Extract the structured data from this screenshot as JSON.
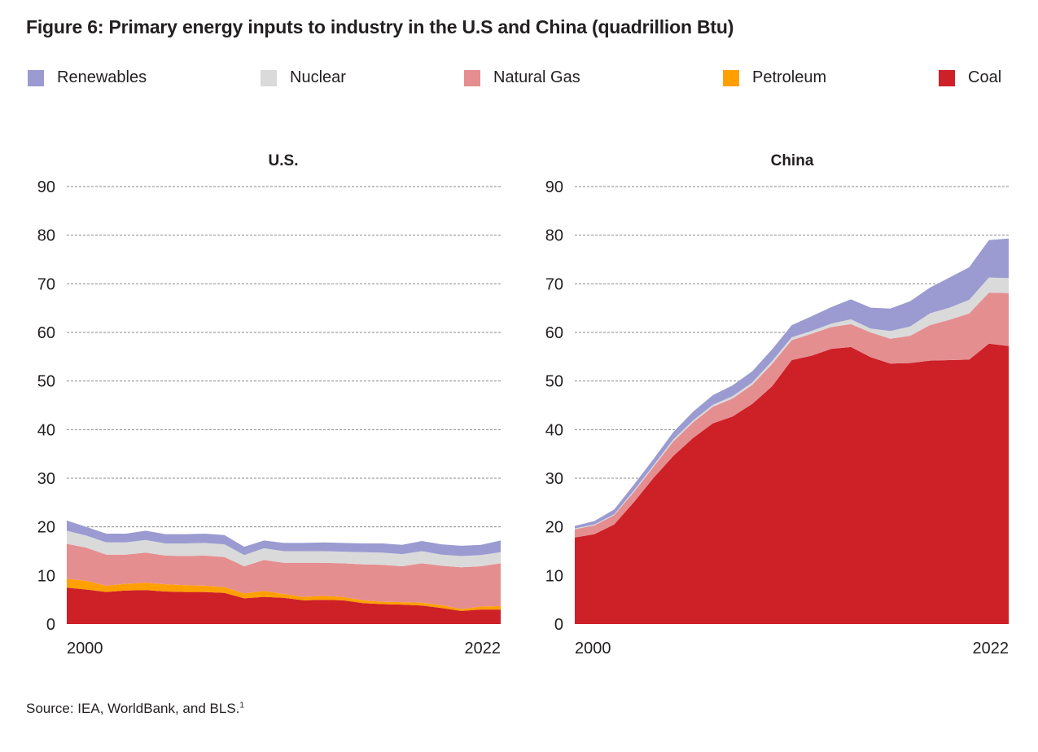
{
  "title": "Figure 6: Primary energy inputs to industry in the U.S and China (quadrillion Btu)",
  "source": {
    "text": "Source: IEA, WorldBank, and BLS.",
    "footnote": "1"
  },
  "legend": [
    {
      "name": "Renewables",
      "color": "#9b9bd1"
    },
    {
      "name": "Nuclear",
      "color": "#dadada"
    },
    {
      "name": "Natural Gas",
      "color": "#e58e90"
    },
    {
      "name": "Petroleum",
      "color": "#ffa000"
    },
    {
      "name": "Coal",
      "color": "#cd2027"
    }
  ],
  "chart_data": [
    {
      "type": "area",
      "stacked": true,
      "title": "U.S.",
      "xlabel": "",
      "ylabel": "quadrillion Btu",
      "x": [
        2000,
        2001,
        2002,
        2003,
        2004,
        2005,
        2006,
        2007,
        2008,
        2009,
        2010,
        2011,
        2012,
        2013,
        2014,
        2015,
        2016,
        2017,
        2018,
        2019,
        2020,
        2021,
        2022
      ],
      "x_tick_labels": [
        "2000",
        "2022"
      ],
      "y_ticks": [
        0,
        10,
        20,
        30,
        40,
        50,
        60,
        70,
        80,
        90
      ],
      "ylim": [
        0,
        90
      ],
      "grid": "horizontal dotted",
      "series": [
        {
          "name": "Coal",
          "color": "#cd2027",
          "values": [
            7.5,
            7.1,
            6.6,
            6.9,
            7.0,
            6.7,
            6.6,
            6.6,
            6.4,
            5.3,
            5.6,
            5.4,
            4.9,
            5.0,
            4.9,
            4.3,
            4.1,
            4.0,
            3.8,
            3.3,
            2.7,
            3.0,
            3.0
          ]
        },
        {
          "name": "Petroleum",
          "color": "#ffa000",
          "values": [
            1.8,
            1.8,
            1.3,
            1.4,
            1.5,
            1.5,
            1.4,
            1.3,
            1.2,
            1.0,
            1.2,
            0.8,
            0.7,
            0.8,
            0.7,
            0.6,
            0.5,
            0.5,
            0.6,
            0.6,
            0.4,
            0.6,
            0.7
          ]
        },
        {
          "name": "Natural Gas",
          "color": "#e58e90",
          "values": [
            7.2,
            6.8,
            6.4,
            6.0,
            6.2,
            5.9,
            6.0,
            6.2,
            6.2,
            5.6,
            6.4,
            6.4,
            7.0,
            6.8,
            6.9,
            7.4,
            7.6,
            7.4,
            8.1,
            8.1,
            8.6,
            8.3,
            8.8
          ]
        },
        {
          "name": "Nuclear",
          "color": "#dadada",
          "values": [
            2.7,
            2.5,
            2.5,
            2.5,
            2.6,
            2.5,
            2.6,
            2.6,
            2.6,
            2.3,
            2.4,
            2.4,
            2.4,
            2.4,
            2.4,
            2.5,
            2.5,
            2.5,
            2.5,
            2.3,
            2.3,
            2.3,
            2.3
          ]
        },
        {
          "name": "Renewables",
          "color": "#9b9bd1",
          "values": [
            2.1,
            1.8,
            1.8,
            1.8,
            1.9,
            1.9,
            1.9,
            1.9,
            1.9,
            1.7,
            1.6,
            1.7,
            1.7,
            1.8,
            1.8,
            1.8,
            1.9,
            1.9,
            2.1,
            2.1,
            2.1,
            2.1,
            2.4
          ]
        }
      ]
    },
    {
      "type": "area",
      "stacked": true,
      "title": "China",
      "xlabel": "",
      "ylabel": "quadrillion Btu",
      "x": [
        2000,
        2001,
        2002,
        2003,
        2004,
        2005,
        2006,
        2007,
        2008,
        2009,
        2010,
        2011,
        2012,
        2013,
        2014,
        2015,
        2016,
        2017,
        2018,
        2019,
        2020,
        2021,
        2022
      ],
      "x_tick_labels": [
        "2000",
        "2022"
      ],
      "y_ticks": [
        0,
        10,
        20,
        30,
        40,
        50,
        60,
        70,
        80,
        90
      ],
      "ylim": [
        0,
        90
      ],
      "grid": "horizontal dotted",
      "series": [
        {
          "name": "Coal",
          "color": "#cd2027",
          "values": [
            17.8,
            18.5,
            20.5,
            25.1,
            30.1,
            34.6,
            38.3,
            41.3,
            42.7,
            45.3,
            48.9,
            54.3,
            55.2,
            56.6,
            57.0,
            54.9,
            53.6,
            53.7,
            54.2,
            54.3,
            54.4,
            57.7,
            57.2
          ]
        },
        {
          "name": "Petroleum",
          "color": "#ffa000",
          "values": [
            0,
            0,
            0,
            0,
            0,
            0,
            0,
            0,
            0,
            0,
            0,
            0,
            0,
            0,
            0,
            0,
            0,
            0,
            0,
            0,
            0,
            0,
            0
          ]
        },
        {
          "name": "Natural Gas",
          "color": "#e58e90",
          "values": [
            1.7,
            1.8,
            1.9,
            2.1,
            2.3,
            3.0,
            3.2,
            3.4,
            3.7,
            3.9,
            4.6,
            4.1,
            4.5,
            4.5,
            4.7,
            5.1,
            5.1,
            5.6,
            7.3,
            8.3,
            9.5,
            10.5,
            10.9
          ]
        },
        {
          "name": "Nuclear",
          "color": "#dadada",
          "values": [
            0.2,
            0.2,
            0.2,
            0.3,
            0.3,
            0.4,
            0.4,
            0.4,
            0.5,
            0.5,
            0.6,
            0.6,
            0.6,
            0.7,
            1.0,
            0.8,
            1.6,
            1.9,
            2.4,
            2.5,
            2.8,
            3.1,
            3.1
          ]
        },
        {
          "name": "Renewables",
          "color": "#9b9bd1",
          "values": [
            0.5,
            0.7,
            1.0,
            1.2,
            1.3,
            1.5,
            1.8,
            2.0,
            2.2,
            2.3,
            2.4,
            2.5,
            3.0,
            3.4,
            4.1,
            4.3,
            4.6,
            5.2,
            5.3,
            6.2,
            6.7,
            7.7,
            8.1
          ]
        }
      ]
    }
  ]
}
